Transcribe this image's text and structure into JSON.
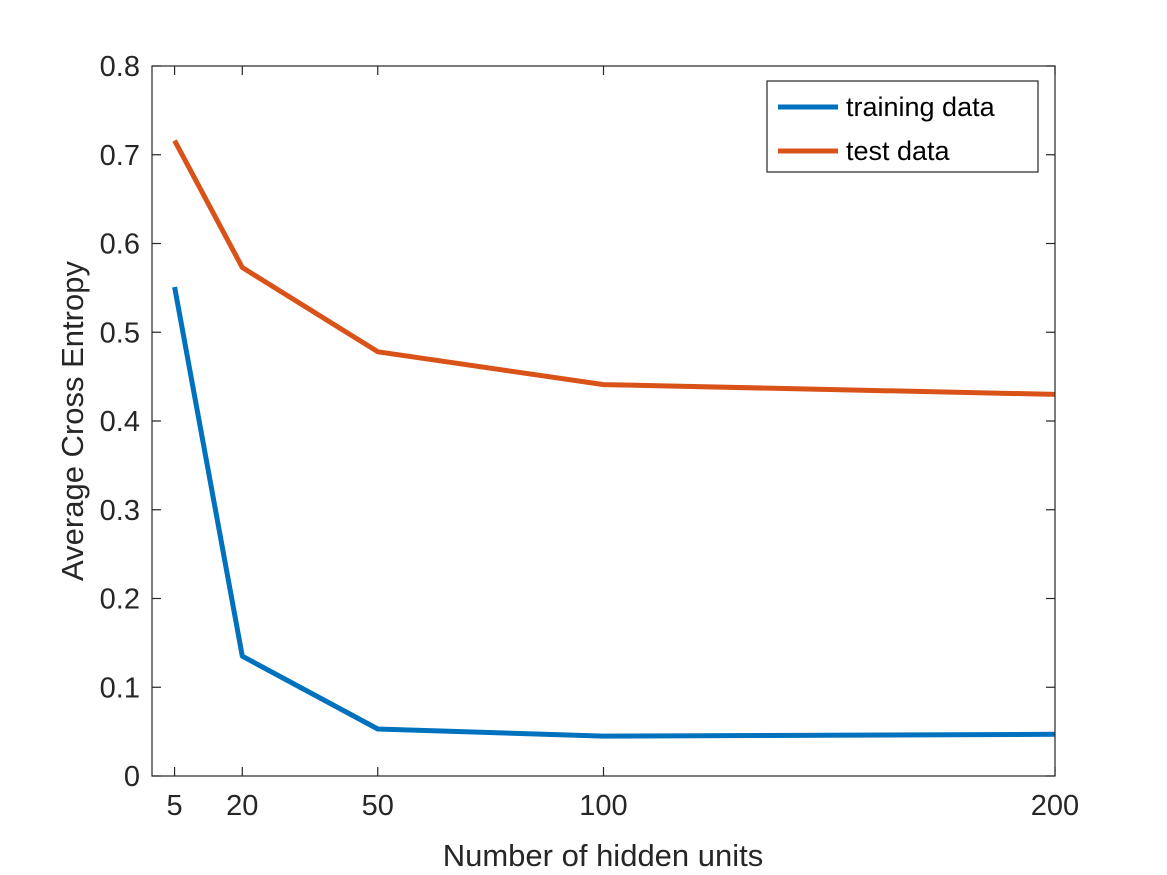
{
  "chart_data": {
    "type": "line",
    "title": "",
    "xlabel": "Number of hidden units",
    "ylabel": "Average Cross Entropy",
    "x": [
      5,
      20,
      50,
      100,
      200
    ],
    "xlim": [
      0,
      200
    ],
    "ylim": [
      0,
      0.8
    ],
    "xticks": [
      5,
      20,
      50,
      100,
      200
    ],
    "xtick_labels": [
      "5",
      "20",
      "50",
      "100",
      "200"
    ],
    "yticks": [
      0,
      0.1,
      0.2,
      0.3,
      0.4,
      0.5,
      0.6,
      0.7,
      0.8
    ],
    "ytick_labels": [
      "0",
      "0.1",
      "0.2",
      "0.3",
      "0.4",
      "0.5",
      "0.6",
      "0.7",
      "0.8"
    ],
    "grid": false,
    "legend_position": "top-right",
    "series": [
      {
        "name": "training data",
        "color": "#0072BD",
        "values": [
          0.551,
          0.135,
          0.053,
          0.045,
          0.047
        ]
      },
      {
        "name": "test data",
        "color": "#D95319",
        "values": [
          0.716,
          0.573,
          0.478,
          0.441,
          0.43
        ]
      }
    ]
  }
}
